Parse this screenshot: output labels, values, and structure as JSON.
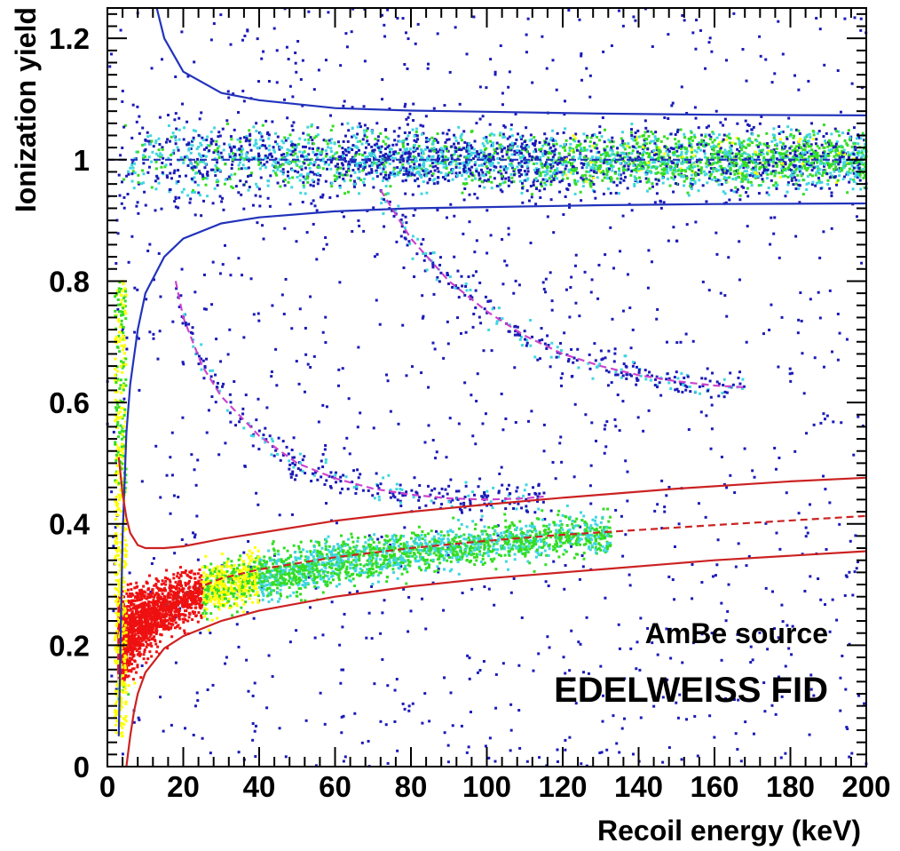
{
  "chart_data": {
    "type": "scatter",
    "title": "",
    "xlabel": "Recoil energy (keV)",
    "ylabel": "Ionization yield",
    "xlim": [
      0,
      200
    ],
    "ylim": [
      0,
      1.25
    ],
    "x_ticks": [
      "0",
      "20",
      "40",
      "60",
      "80",
      "100",
      "120",
      "140",
      "160",
      "180",
      "200"
    ],
    "y_ticks": [
      "0",
      "0.2",
      "0.4",
      "0.6",
      "0.8",
      "1",
      "1.2"
    ],
    "grid": false,
    "legend": "none",
    "annotations": [
      "AmBe source",
      "EDELWEISS FID"
    ],
    "density_colors": [
      "#1a1ab8",
      "#3fd6e0",
      "#33dd22",
      "#ffff00",
      "#ee1111"
    ],
    "populations": [
      {
        "name": "electron recoil band",
        "yield_center": 1.0,
        "x_range": [
          2,
          200
        ]
      },
      {
        "name": "nuclear recoil band",
        "yield_center_at_20keV": 0.3,
        "yield_center_at_200keV": 0.41,
        "x_range": [
          3,
          130
        ]
      },
      {
        "name": "inelastic gamma line",
        "yield_at_20keV": 0.8,
        "yield_at_100keV": 0.45
      },
      {
        "name": "inelastic gamma line",
        "yield_at_70keV": 0.97,
        "yield_at_165keV": 0.63
      }
    ],
    "curves": [
      {
        "name": "gamma band center",
        "color": "#2233bb",
        "style": "dashed",
        "x": [
          0,
          200
        ],
        "y": [
          1.0,
          1.0
        ]
      },
      {
        "name": "gamma band upper limit",
        "color": "#2233bb",
        "style": "solid",
        "x": [
          13,
          15,
          20,
          30,
          40,
          60,
          80,
          100,
          130,
          160,
          200
        ],
        "y": [
          1.25,
          1.2,
          1.145,
          1.11,
          1.098,
          1.085,
          1.081,
          1.079,
          1.076,
          1.074,
          1.073
        ]
      },
      {
        "name": "gamma band lower limit",
        "color": "#2233bb",
        "style": "solid",
        "x": [
          3,
          4,
          5,
          6,
          8,
          10,
          15,
          20,
          30,
          40,
          60,
          80,
          100,
          130,
          160,
          200
        ],
        "y": [
          0.05,
          0.38,
          0.55,
          0.63,
          0.72,
          0.78,
          0.84,
          0.87,
          0.895,
          0.905,
          0.915,
          0.92,
          0.922,
          0.925,
          0.927,
          0.928
        ]
      },
      {
        "name": "nuclear recoil band center",
        "color": "#cc2222",
        "style": "dashed",
        "x": [
          15,
          20,
          30,
          40,
          60,
          80,
          100,
          120,
          140,
          160,
          200
        ],
        "y": [
          0.265,
          0.285,
          0.31,
          0.325,
          0.345,
          0.36,
          0.372,
          0.382,
          0.39,
          0.398,
          0.413
        ]
      },
      {
        "name": "nuclear recoil band upper limit",
        "color": "#cc2222",
        "style": "solid",
        "x": [
          3,
          4,
          5,
          6,
          8,
          10,
          15,
          20,
          30,
          40,
          60,
          80,
          100,
          120,
          150,
          180,
          200
        ],
        "y": [
          0.51,
          0.45,
          0.41,
          0.385,
          0.365,
          0.36,
          0.36,
          0.363,
          0.375,
          0.385,
          0.405,
          0.42,
          0.432,
          0.443,
          0.458,
          0.47,
          0.476
        ]
      },
      {
        "name": "nuclear recoil band lower limit",
        "color": "#cc2222",
        "style": "solid",
        "x": [
          5,
          6,
          7,
          8,
          10,
          15,
          20,
          30,
          40,
          60,
          80,
          100,
          130,
          160,
          200
        ],
        "y": [
          0.0,
          0.05,
          0.09,
          0.12,
          0.155,
          0.195,
          0.215,
          0.24,
          0.257,
          0.28,
          0.297,
          0.31,
          0.325,
          0.34,
          0.355
        ]
      },
      {
        "name": "inelastic line fit 1",
        "color": "#cc44cc",
        "style": "dashed",
        "x": [
          18,
          20,
          25,
          30,
          40,
          50,
          60,
          70,
          80,
          90,
          100,
          110,
          115
        ],
        "y": [
          0.8,
          0.74,
          0.66,
          0.61,
          0.545,
          0.5,
          0.475,
          0.458,
          0.448,
          0.442,
          0.44,
          0.442,
          0.445
        ]
      },
      {
        "name": "inelastic line fit 2",
        "color": "#cc44cc",
        "style": "dashed",
        "x": [
          72,
          80,
          90,
          100,
          110,
          120,
          130,
          140,
          150,
          160,
          168
        ],
        "y": [
          0.95,
          0.87,
          0.8,
          0.75,
          0.71,
          0.68,
          0.66,
          0.645,
          0.635,
          0.628,
          0.625
        ]
      }
    ]
  }
}
